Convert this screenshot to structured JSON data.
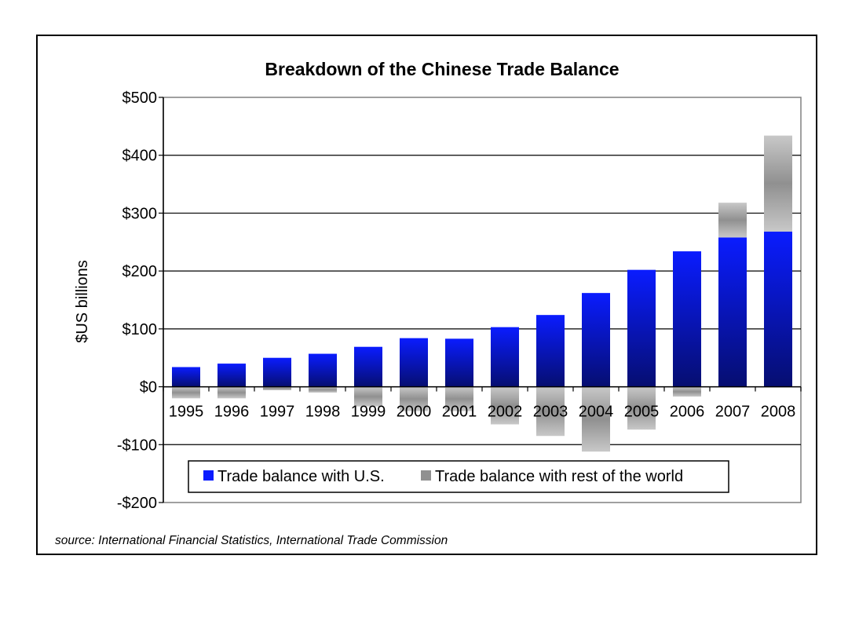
{
  "chart_data": {
    "type": "bar",
    "stacked": true,
    "title": "Breakdown of the Chinese Trade Balance",
    "xlabel": "",
    "ylabel": "$US billions",
    "ylim": [
      -200,
      500
    ],
    "ytick_values": [
      -200,
      -100,
      0,
      100,
      200,
      300,
      400,
      500
    ],
    "ytick_labels": [
      "-$200",
      "-$100",
      "$0",
      "$100",
      "$200",
      "$300",
      "$400",
      "$500"
    ],
    "categories": [
      "1995",
      "1996",
      "1997",
      "1998",
      "1999",
      "2000",
      "2001",
      "2002",
      "2003",
      "2004",
      "2005",
      "2006",
      "2007",
      "2008"
    ],
    "series": [
      {
        "name": "Trade balance with U.S.",
        "values": [
          34,
          40,
          50,
          57,
          69,
          84,
          83,
          103,
          124,
          162,
          202,
          234,
          258,
          268
        ]
      },
      {
        "name": "Trade balance with rest of the world",
        "values": [
          -20,
          -20,
          -6,
          -10,
          -34,
          -42,
          -42,
          -65,
          -85,
          -112,
          -74,
          -17,
          60,
          166
        ]
      }
    ],
    "grid": true,
    "legend_position": "bottom-center",
    "colors": {
      "us_top": "#0a1cff",
      "us_bottom": "#060e70",
      "rest_top": "#c8c8c8",
      "rest_mid": "#909090",
      "rest_bottom": "#c8c8c8",
      "gridline": "#000000",
      "frame": "#808080"
    },
    "source": "source: International Financial Statistics, International Trade Commission"
  }
}
